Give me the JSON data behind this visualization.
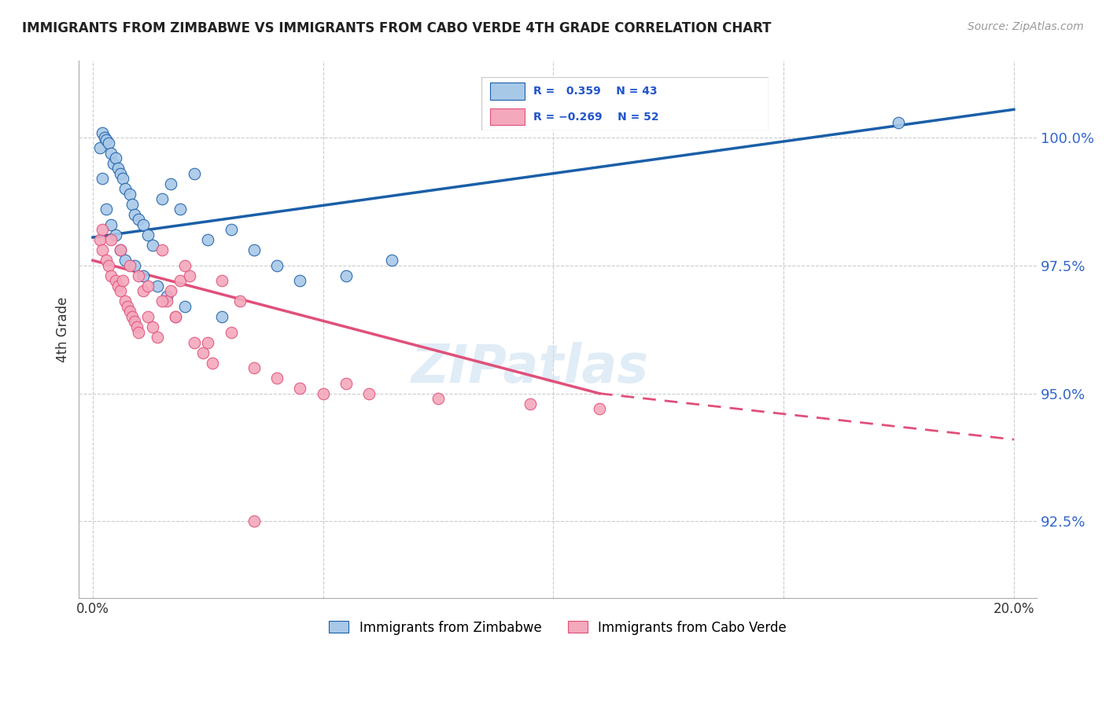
{
  "title": "IMMIGRANTS FROM ZIMBABWE VS IMMIGRANTS FROM CABO VERDE 4TH GRADE CORRELATION CHART",
  "source": "Source: ZipAtlas.com",
  "ylabel": "4th Grade",
  "yticks": [
    92.5,
    95.0,
    97.5,
    100.0
  ],
  "ytick_labels": [
    "92.5%",
    "95.0%",
    "97.5%",
    "100.0%"
  ],
  "xlim": [
    -0.3,
    20.5
  ],
  "ylim": [
    91.0,
    101.5
  ],
  "r_zimbabwe": 0.359,
  "n_zimbabwe": 43,
  "r_cabo": -0.269,
  "n_cabo": 52,
  "color_zimbabwe": "#a8c8e8",
  "color_cabo": "#f4a8bc",
  "line_color_zimbabwe": "#1a5fa8",
  "line_color_cabo": "#e0507a",
  "zim_line_x0": 0.0,
  "zim_line_y0": 98.05,
  "zim_line_x1": 20.0,
  "zim_line_y1": 100.55,
  "cabo_line_x0": 0.0,
  "cabo_line_y0": 97.6,
  "cabo_line_x1": 11.0,
  "cabo_line_y1": 95.0,
  "cabo_dash_x0": 11.0,
  "cabo_dash_y0": 95.0,
  "cabo_dash_x1": 20.0,
  "cabo_dash_y1": 94.1,
  "zim_x": [
    0.15,
    0.2,
    0.25,
    0.3,
    0.35,
    0.4,
    0.45,
    0.5,
    0.55,
    0.6,
    0.65,
    0.7,
    0.8,
    0.85,
    0.9,
    1.0,
    1.1,
    1.2,
    1.3,
    1.5,
    1.7,
    1.9,
    2.2,
    2.5,
    3.0,
    3.5,
    4.0,
    5.5,
    6.5,
    17.5,
    0.2,
    0.3,
    0.4,
    0.5,
    0.6,
    0.7,
    0.9,
    1.1,
    1.4,
    1.6,
    2.0,
    2.8,
    4.5
  ],
  "zim_y": [
    99.8,
    100.1,
    100.0,
    99.95,
    99.9,
    99.7,
    99.5,
    99.6,
    99.4,
    99.3,
    99.2,
    99.0,
    98.9,
    98.7,
    98.5,
    98.4,
    98.3,
    98.1,
    97.9,
    98.8,
    99.1,
    98.6,
    99.3,
    98.0,
    98.2,
    97.8,
    97.5,
    97.3,
    97.6,
    100.3,
    99.2,
    98.6,
    98.3,
    98.1,
    97.8,
    97.6,
    97.5,
    97.3,
    97.1,
    96.9,
    96.7,
    96.5,
    97.2
  ],
  "cabo_x": [
    0.15,
    0.2,
    0.3,
    0.35,
    0.4,
    0.5,
    0.55,
    0.6,
    0.65,
    0.7,
    0.75,
    0.8,
    0.85,
    0.9,
    0.95,
    1.0,
    1.1,
    1.2,
    1.3,
    1.4,
    1.5,
    1.6,
    1.7,
    1.8,
    1.9,
    2.0,
    2.1,
    2.2,
    2.4,
    2.6,
    2.8,
    3.0,
    3.2,
    3.5,
    4.0,
    4.5,
    5.0,
    5.5,
    6.0,
    7.5,
    9.5,
    11.0,
    0.2,
    0.4,
    0.6,
    0.8,
    1.0,
    1.2,
    1.5,
    1.8,
    2.5,
    3.5
  ],
  "cabo_y": [
    98.0,
    97.8,
    97.6,
    97.5,
    97.3,
    97.2,
    97.1,
    97.0,
    97.2,
    96.8,
    96.7,
    96.6,
    96.5,
    96.4,
    96.3,
    96.2,
    97.0,
    96.5,
    96.3,
    96.1,
    97.8,
    96.8,
    97.0,
    96.5,
    97.2,
    97.5,
    97.3,
    96.0,
    95.8,
    95.6,
    97.2,
    96.2,
    96.8,
    95.5,
    95.3,
    95.1,
    95.0,
    95.2,
    95.0,
    94.9,
    94.8,
    94.7,
    98.2,
    98.0,
    97.8,
    97.5,
    97.3,
    97.1,
    96.8,
    96.5,
    96.0,
    92.5
  ]
}
